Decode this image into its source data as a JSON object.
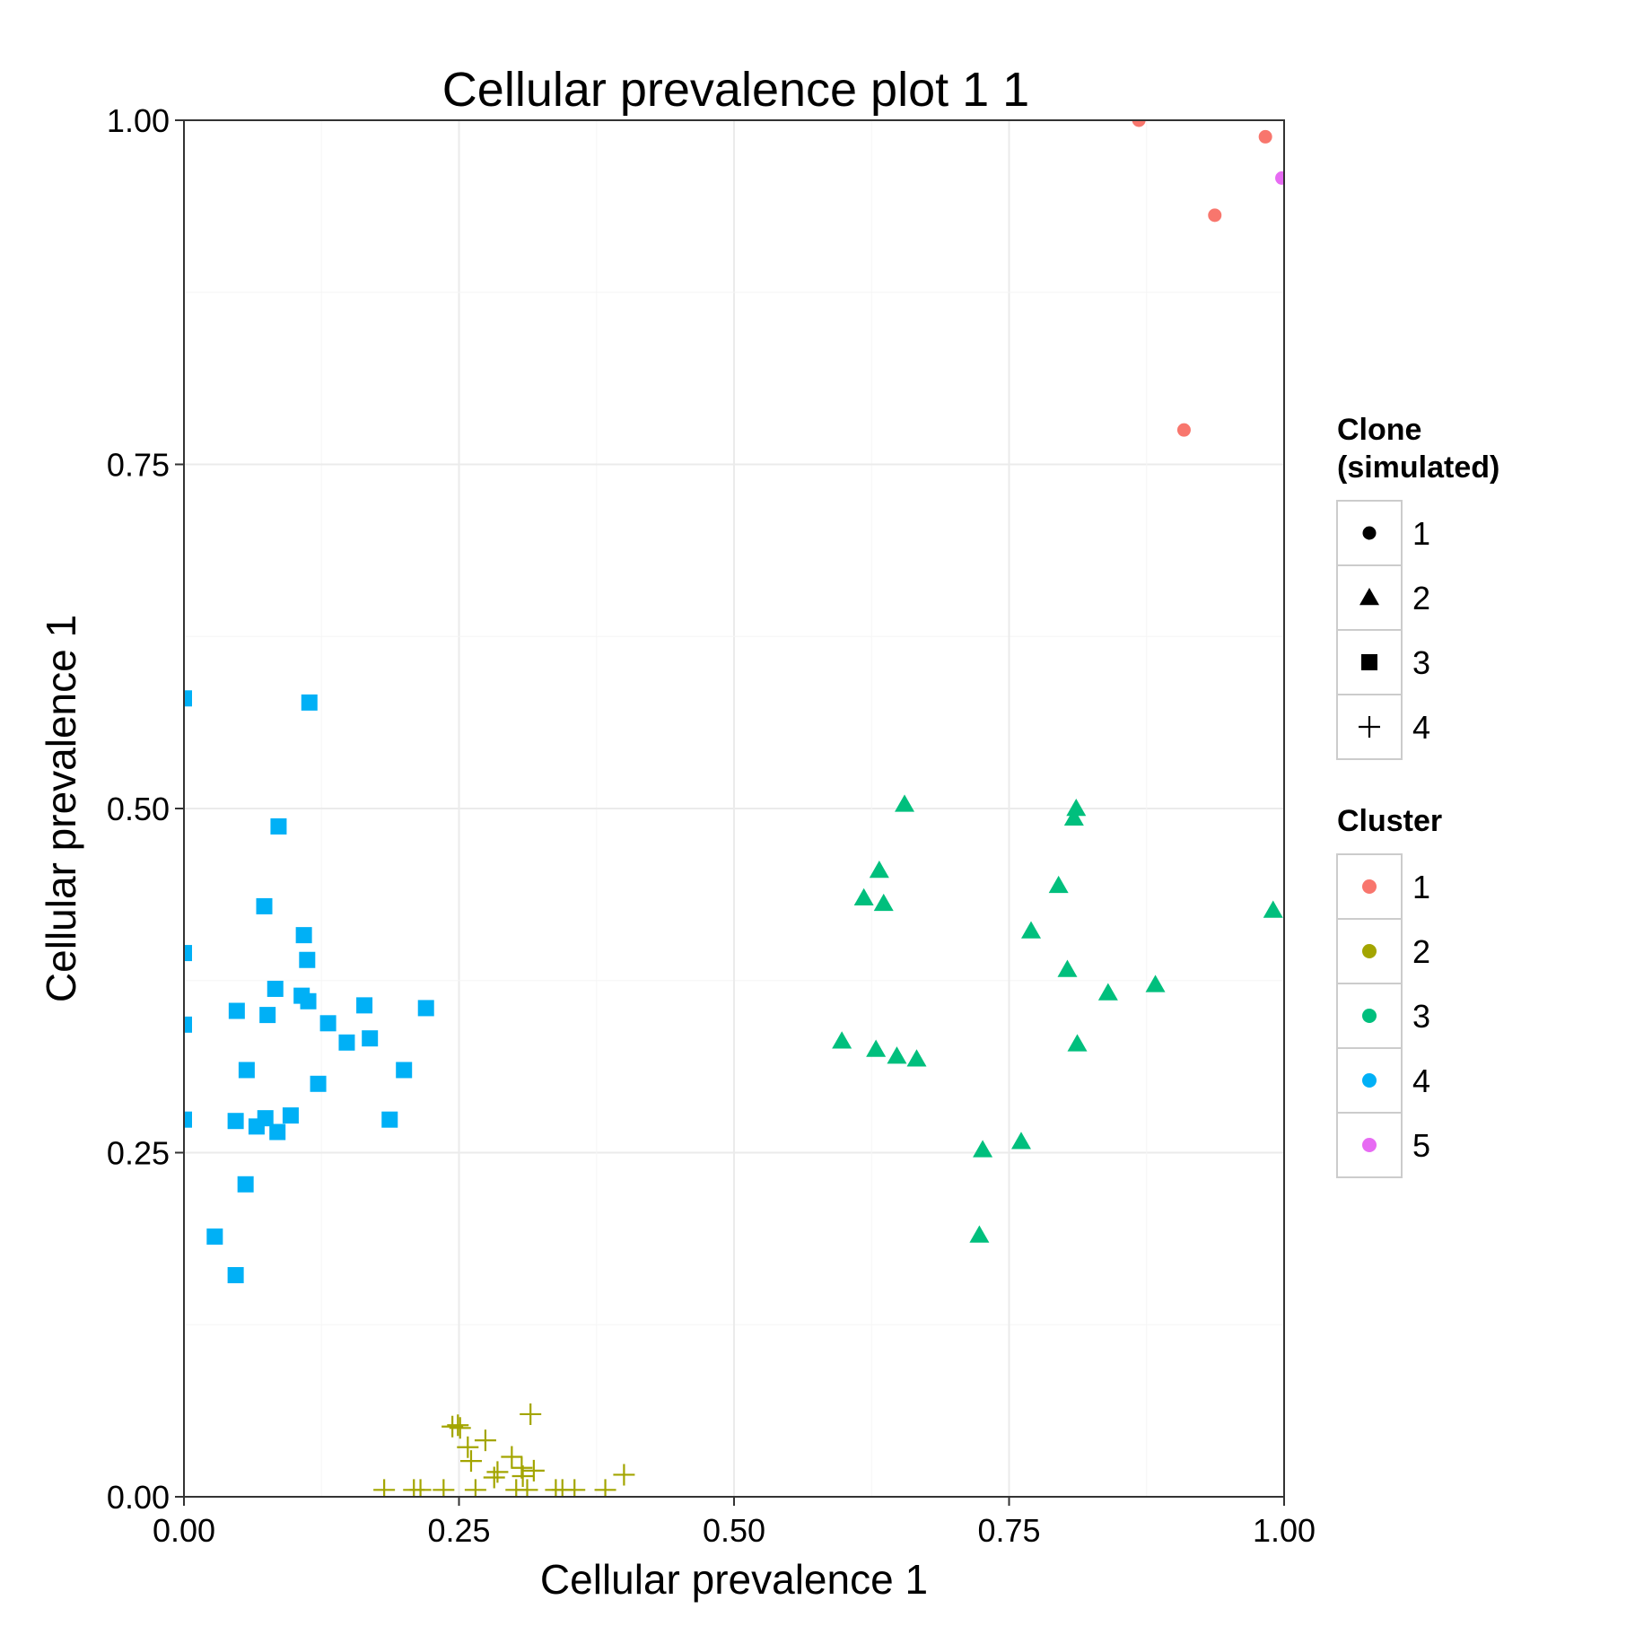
{
  "chart_data": {
    "type": "scatter",
    "title": "Cellular prevalence plot 1 1",
    "xlabel": "Cellular prevalence 1",
    "ylabel": "Cellular prevalence 1",
    "xlim": [
      0,
      1
    ],
    "ylim": [
      0,
      1
    ],
    "x_ticks": [
      "0.00",
      "0.25",
      "0.50",
      "0.75",
      "1.00"
    ],
    "y_ticks": [
      "0.00",
      "0.25",
      "0.50",
      "0.75",
      "1.00"
    ],
    "grid": true,
    "legend_position": "right",
    "legends": [
      {
        "title_lines": [
          "Clone",
          "(simulated)"
        ],
        "kind": "shape",
        "entries": [
          {
            "label": "1",
            "shape": "circle"
          },
          {
            "label": "2",
            "shape": "triangle"
          },
          {
            "label": "3",
            "shape": "square"
          },
          {
            "label": "4",
            "shape": "plus"
          }
        ]
      },
      {
        "title_lines": [
          "Cluster"
        ],
        "kind": "color",
        "entries": [
          {
            "label": "1",
            "color": "#F8766D"
          },
          {
            "label": "2",
            "color": "#A3A500"
          },
          {
            "label": "3",
            "color": "#00BF7D"
          },
          {
            "label": "4",
            "color": "#00B0F6"
          },
          {
            "label": "5",
            "color": "#E76BF3"
          }
        ]
      }
    ],
    "series": [
      {
        "clone": "1",
        "cluster": "1",
        "shape": "circle",
        "color": "#F8766D",
        "points": [
          [
            0.868,
            1.0
          ],
          [
            0.983,
            0.988
          ],
          [
            0.937,
            0.931
          ],
          [
            0.909,
            0.775
          ]
        ]
      },
      {
        "clone": "1",
        "cluster": "5",
        "shape": "circle",
        "color": "#E76BF3",
        "points": [
          [
            0.998,
            0.958
          ]
        ]
      },
      {
        "clone": "2",
        "cluster": "3",
        "shape": "triangle",
        "color": "#00BF7D",
        "points": [
          [
            0.655,
            0.503
          ],
          [
            0.632,
            0.455
          ],
          [
            0.618,
            0.435
          ],
          [
            0.636,
            0.431
          ],
          [
            0.811,
            0.5
          ],
          [
            0.809,
            0.493
          ],
          [
            0.795,
            0.444
          ],
          [
            0.77,
            0.411
          ],
          [
            0.803,
            0.383
          ],
          [
            0.883,
            0.372
          ],
          [
            0.84,
            0.366
          ],
          [
            0.99,
            0.426
          ],
          [
            0.598,
            0.331
          ],
          [
            0.629,
            0.325
          ],
          [
            0.648,
            0.32
          ],
          [
            0.666,
            0.318
          ],
          [
            0.812,
            0.329
          ],
          [
            0.726,
            0.252
          ],
          [
            0.761,
            0.258
          ],
          [
            0.723,
            0.19
          ]
        ]
      },
      {
        "clone": "3",
        "cluster": "4",
        "shape": "square",
        "color": "#00B0F6",
        "points": [
          [
            0.0,
            0.58
          ],
          [
            0.114,
            0.577
          ],
          [
            0.086,
            0.487
          ],
          [
            0.073,
            0.429
          ],
          [
            0.0,
            0.395
          ],
          [
            0.109,
            0.408
          ],
          [
            0.112,
            0.39
          ],
          [
            0.083,
            0.369
          ],
          [
            0.107,
            0.364
          ],
          [
            0.113,
            0.36
          ],
          [
            0.048,
            0.353
          ],
          [
            0.076,
            0.35
          ],
          [
            0.164,
            0.357
          ],
          [
            0.22,
            0.355
          ],
          [
            0.131,
            0.344
          ],
          [
            0.0,
            0.343
          ],
          [
            0.169,
            0.333
          ],
          [
            0.148,
            0.33
          ],
          [
            0.057,
            0.31
          ],
          [
            0.2,
            0.31
          ],
          [
            0.122,
            0.3
          ],
          [
            0.0,
            0.274
          ],
          [
            0.047,
            0.273
          ],
          [
            0.074,
            0.275
          ],
          [
            0.097,
            0.277
          ],
          [
            0.066,
            0.269
          ],
          [
            0.085,
            0.265
          ],
          [
            0.187,
            0.274
          ],
          [
            0.056,
            0.227
          ],
          [
            0.028,
            0.189
          ],
          [
            0.047,
            0.161
          ]
        ]
      },
      {
        "clone": "4",
        "cluster": "2",
        "shape": "plus",
        "color": "#A3A500",
        "points": [
          [
            0.315,
            0.06
          ],
          [
            0.249,
            0.052
          ],
          [
            0.244,
            0.051
          ],
          [
            0.251,
            0.05
          ],
          [
            0.274,
            0.041
          ],
          [
            0.258,
            0.036
          ],
          [
            0.261,
            0.026
          ],
          [
            0.298,
            0.029
          ],
          [
            0.285,
            0.018
          ],
          [
            0.307,
            0.021
          ],
          [
            0.282,
            0.014
          ],
          [
            0.308,
            0.015
          ],
          [
            0.318,
            0.019
          ],
          [
            0.4,
            0.016
          ],
          [
            0.182,
            0.005
          ],
          [
            0.209,
            0.005
          ],
          [
            0.215,
            0.005
          ],
          [
            0.236,
            0.005
          ],
          [
            0.265,
            0.005
          ],
          [
            0.302,
            0.005
          ],
          [
            0.312,
            0.005
          ],
          [
            0.338,
            0.005
          ],
          [
            0.344,
            0.005
          ],
          [
            0.355,
            0.005
          ],
          [
            0.383,
            0.005
          ]
        ]
      }
    ]
  }
}
